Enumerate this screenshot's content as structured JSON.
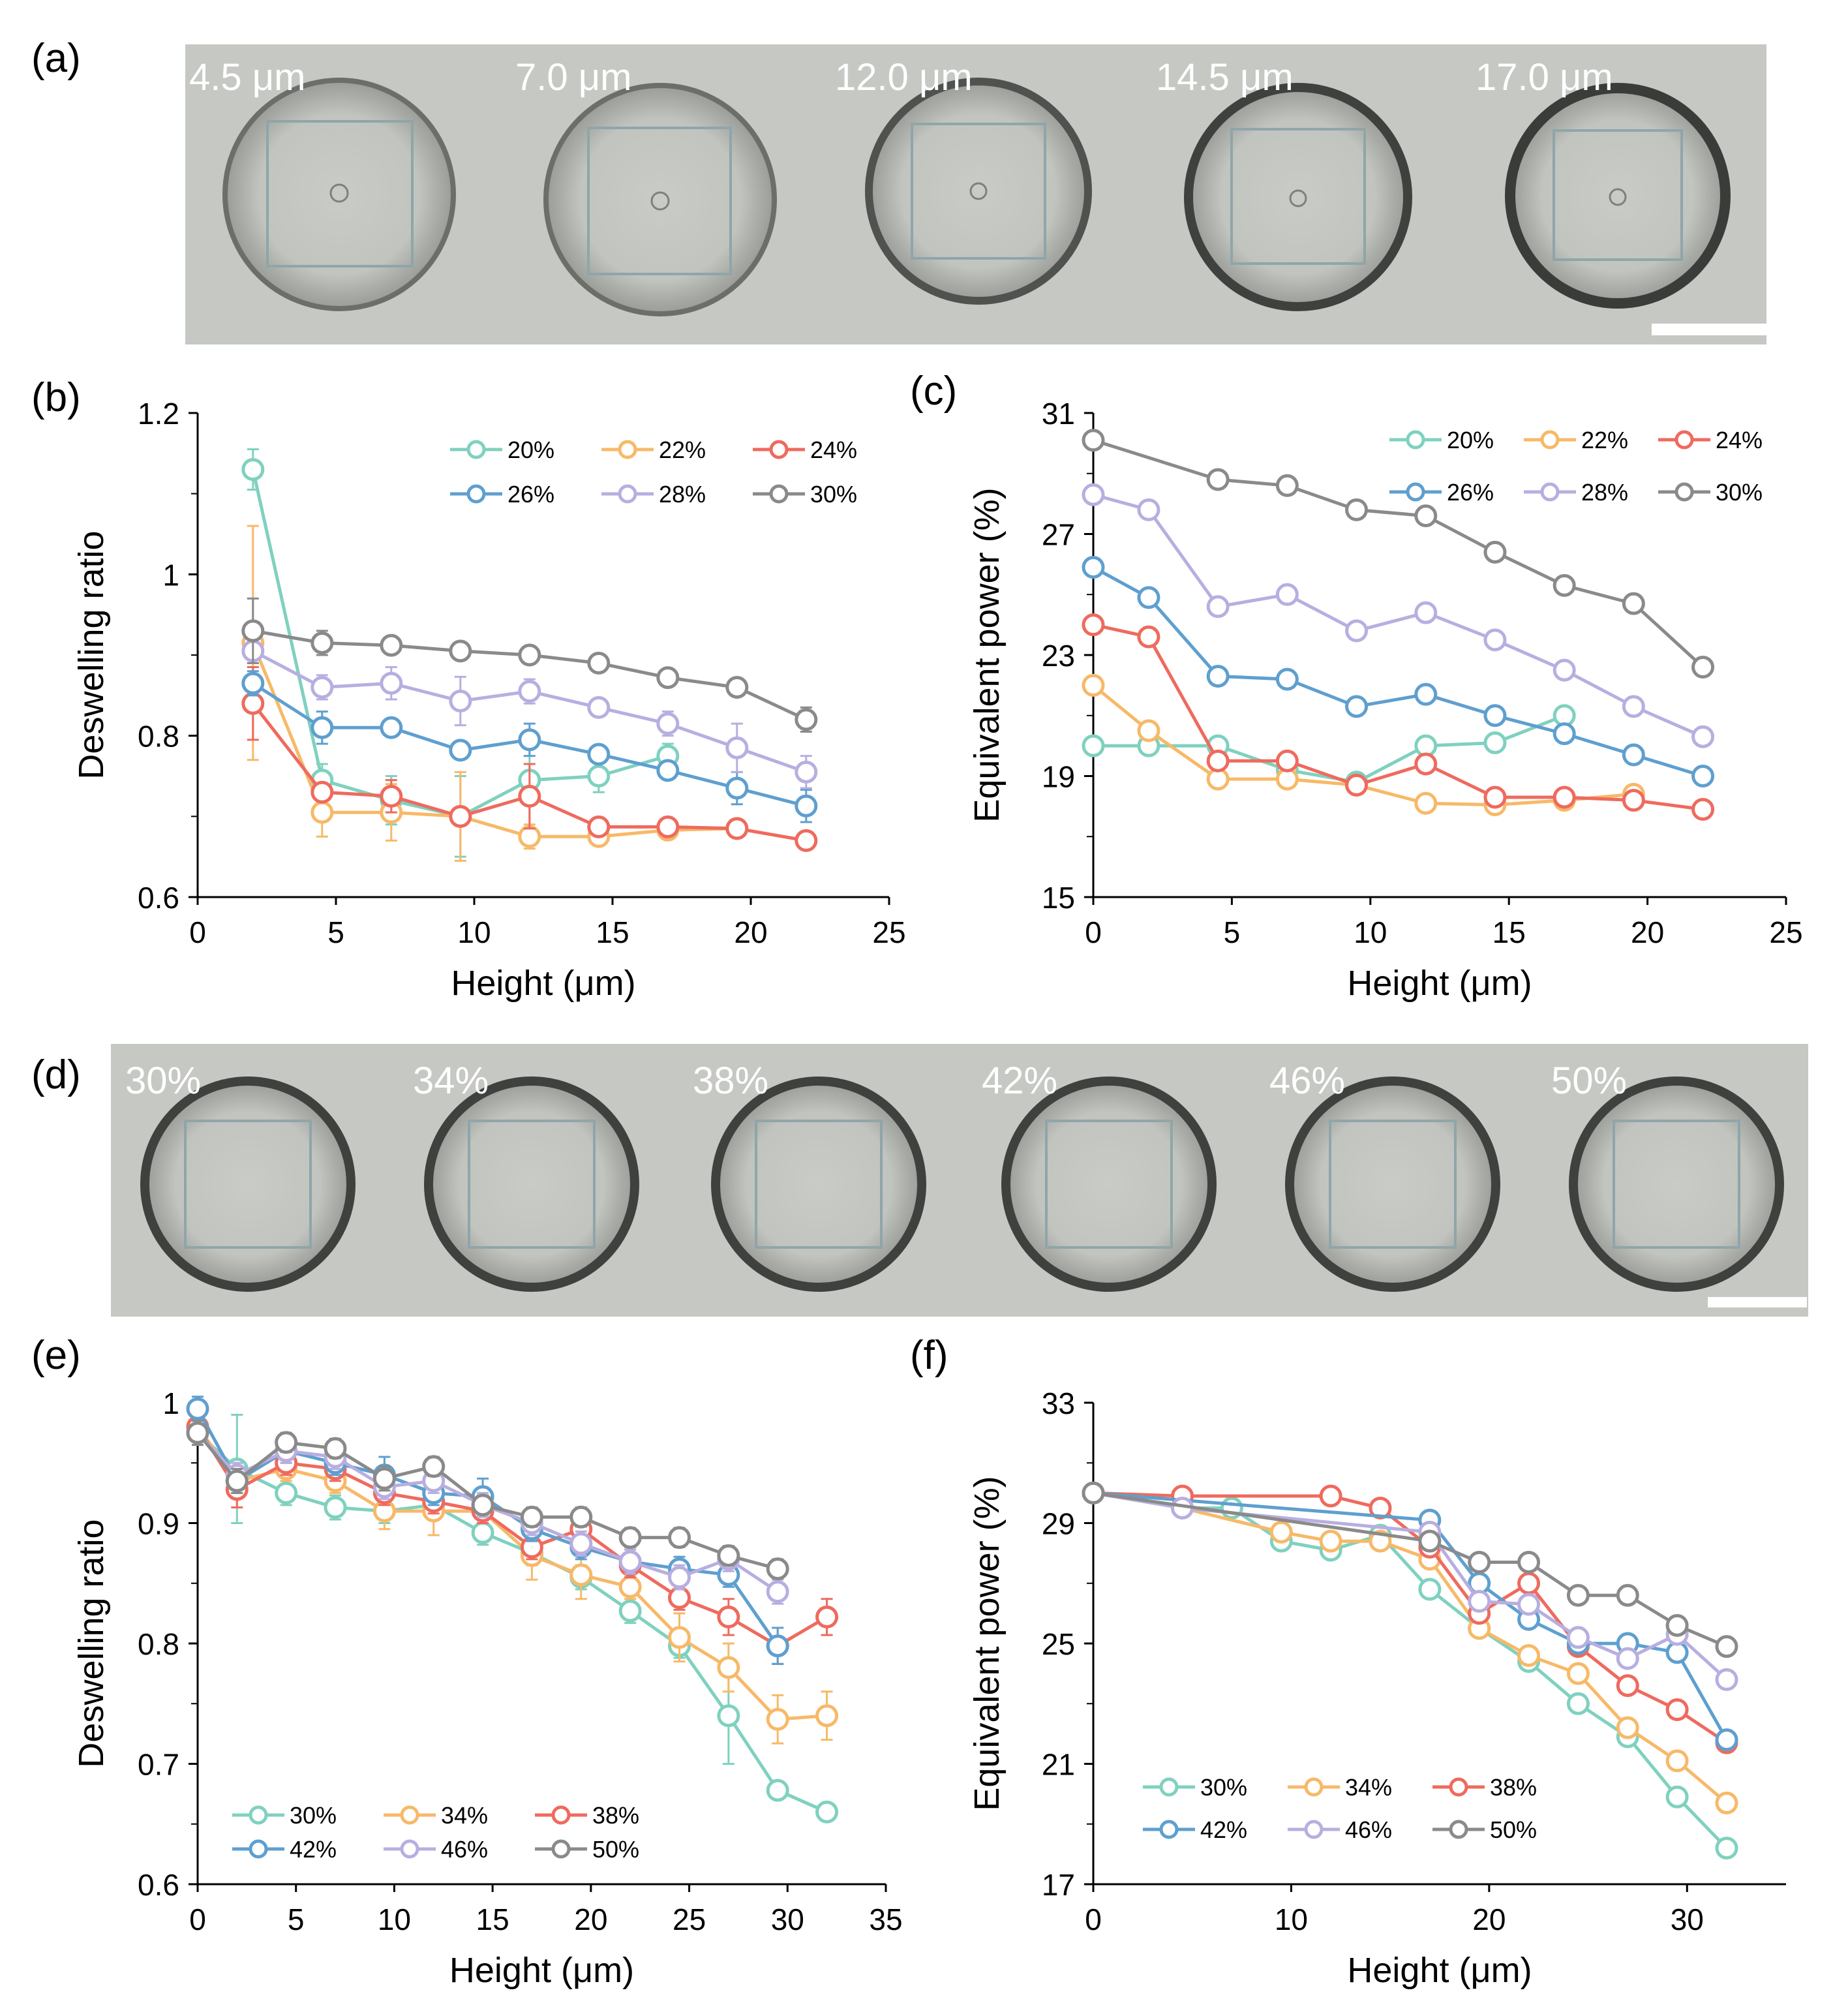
{
  "figure": {
    "panel_labels": [
      "(a)",
      "(b)",
      "(c)",
      "(d)",
      "(e)",
      "(f)"
    ],
    "strip_a_labels": [
      "4.5 μm",
      "7.0 μm",
      "12.0 μm",
      "14.5 μm",
      "17.0 μm"
    ],
    "strip_d_labels": [
      "30%",
      "34%",
      "38%",
      "42%",
      "46%",
      "50%"
    ]
  },
  "chart_data": [
    {
      "id": "b",
      "type": "line",
      "xlabel": "Height (μm)",
      "ylabel": "Deswelling ratio",
      "xlim": [
        0,
        25
      ],
      "ylim": [
        0.6,
        1.2
      ],
      "xticks": [
        0,
        5,
        10,
        15,
        20,
        25
      ],
      "yticks": [
        {
          "v": 0.6,
          "t": "0.6"
        },
        {
          "v": 0.8,
          "t": "0.8"
        },
        {
          "v": 1.0,
          "t": "1"
        },
        {
          "v": 1.2,
          "t": "1.2"
        }
      ],
      "legend_position": "top-right",
      "series": [
        {
          "name": "20%",
          "color": "#7fd1bf",
          "x": [
            2,
            4.5,
            7,
            9.5,
            12,
            14.5,
            17
          ],
          "y": [
            1.13,
            0.745,
            0.72,
            0.7,
            0.745,
            0.75,
            0.775
          ],
          "err": [
            0.025,
            0.02,
            0.03,
            0.05,
            0.06,
            0.02,
            0.015
          ]
        },
        {
          "name": "22%",
          "color": "#f7b968",
          "x": [
            2,
            4.5,
            7,
            9.5,
            12,
            14.5,
            17,
            19.5
          ],
          "y": [
            0.915,
            0.705,
            0.705,
            0.7,
            0.675,
            0.675,
            0.683,
            0.685
          ],
          "err": [
            0.145,
            0.03,
            0.035,
            0.055,
            0.015,
            0.01,
            0.01,
            0.01
          ]
        },
        {
          "name": "24%",
          "color": "#ef6a5e",
          "x": [
            2,
            4.5,
            7,
            9.5,
            12,
            14.5,
            17,
            19.5,
            22
          ],
          "y": [
            0.84,
            0.73,
            0.725,
            0.7,
            0.725,
            0.687,
            0.687,
            0.685,
            0.67
          ],
          "err": [
            0.045,
            0.01,
            0.02,
            0.005,
            0.04,
            0.01,
            0.01,
            0.01,
            0.01
          ]
        },
        {
          "name": "26%",
          "color": "#5e9fcf",
          "x": [
            2,
            4.5,
            7,
            9.5,
            12,
            14.5,
            17,
            19.5,
            22
          ],
          "y": [
            0.865,
            0.81,
            0.81,
            0.782,
            0.795,
            0.777,
            0.757,
            0.735,
            0.713
          ],
          "err": [
            0.015,
            0.02,
            0.01,
            0.01,
            0.02,
            0.01,
            0.01,
            0.02,
            0.02
          ]
        },
        {
          "name": "28%",
          "color": "#b8aee0",
          "x": [
            2,
            4.5,
            7,
            9.5,
            12,
            14.5,
            17,
            19.5,
            22
          ],
          "y": [
            0.905,
            0.86,
            0.865,
            0.843,
            0.855,
            0.835,
            0.815,
            0.785,
            0.755
          ],
          "err": [
            0.015,
            0.015,
            0.02,
            0.03,
            0.015,
            0.01,
            0.015,
            0.03,
            0.02
          ]
        },
        {
          "name": "30%",
          "color": "#8a8a8a",
          "x": [
            2,
            4.5,
            7,
            9.5,
            12,
            14.5,
            17,
            19.5,
            22
          ],
          "y": [
            0.93,
            0.915,
            0.912,
            0.905,
            0.9,
            0.89,
            0.872,
            0.86,
            0.82
          ],
          "err": [
            0.04,
            0.015,
            0.01,
            0.01,
            0.01,
            0.01,
            0.01,
            0.01,
            0.015
          ]
        }
      ]
    },
    {
      "id": "c",
      "type": "line",
      "xlabel": "Height (μm)",
      "ylabel": "Equivalent power (%)",
      "xlim": [
        0,
        25
      ],
      "ylim": [
        15,
        31
      ],
      "xticks": [
        0,
        5,
        10,
        15,
        20,
        25
      ],
      "yticks": [
        {
          "v": 15,
          "t": "15"
        },
        {
          "v": 19,
          "t": "19"
        },
        {
          "v": 23,
          "t": "23"
        },
        {
          "v": 27,
          "t": "27"
        },
        {
          "v": 31,
          "t": "31"
        }
      ],
      "legend_position": "top-right",
      "series": [
        {
          "name": "20%",
          "color": "#7fd1bf",
          "x": [
            0,
            2,
            4.5,
            7,
            9.5,
            12,
            14.5,
            17
          ],
          "y": [
            20,
            20,
            20,
            19.2,
            18.8,
            20,
            20.1,
            21
          ]
        },
        {
          "name": "22%",
          "color": "#f7b968",
          "x": [
            0,
            2,
            4.5,
            7,
            9.5,
            12,
            14.5,
            17,
            19.5
          ],
          "y": [
            22,
            20.5,
            18.9,
            18.9,
            18.7,
            18.1,
            18.05,
            18.2,
            18.4
          ]
        },
        {
          "name": "24%",
          "color": "#ef6a5e",
          "x": [
            0,
            2,
            4.5,
            7,
            9.5,
            12,
            14.5,
            17,
            19.5,
            22
          ],
          "y": [
            24,
            23.6,
            19.5,
            19.5,
            18.7,
            19.4,
            18.3,
            18.3,
            18.2,
            17.9
          ]
        },
        {
          "name": "26%",
          "color": "#5e9fcf",
          "x": [
            0,
            2,
            4.5,
            7,
            9.5,
            12,
            14.5,
            17,
            19.5,
            22
          ],
          "y": [
            25.9,
            24.9,
            22.3,
            22.2,
            21.3,
            21.7,
            21,
            20.4,
            19.7,
            19
          ]
        },
        {
          "name": "28%",
          "color": "#b8aee0",
          "x": [
            0,
            2,
            4.5,
            7,
            9.5,
            12,
            14.5,
            17,
            19.5,
            22
          ],
          "y": [
            28.3,
            27.8,
            24.6,
            25,
            23.8,
            24.4,
            23.5,
            22.5,
            21.3,
            20.3
          ]
        },
        {
          "name": "30%",
          "color": "#8a8a8a",
          "x": [
            0,
            4.5,
            7,
            9.5,
            12,
            14.5,
            17,
            19.5,
            22
          ],
          "y": [
            30.1,
            28.8,
            28.6,
            27.8,
            27.6,
            26.4,
            25.3,
            24.7,
            22.6
          ]
        }
      ]
    },
    {
      "id": "e",
      "type": "line",
      "xlabel": "Height (μm)",
      "ylabel": "Deswelling ratio",
      "xlim": [
        0,
        35
      ],
      "ylim": [
        0.6,
        1.0
      ],
      "xticks": [
        0,
        5,
        10,
        15,
        20,
        25,
        30,
        35
      ],
      "yticks": [
        {
          "v": 0.6,
          "t": "0.6"
        },
        {
          "v": 0.7,
          "t": "0.7"
        },
        {
          "v": 0.8,
          "t": "0.8"
        },
        {
          "v": 0.9,
          "t": "0.9"
        },
        {
          "v": 1.0,
          "t": "1"
        }
      ],
      "legend_position": "bottom-left",
      "series": [
        {
          "name": "30%",
          "color": "#7fd1bf",
          "x": [
            0,
            2,
            4.5,
            7,
            9.5,
            12,
            14.5,
            17,
            19.5,
            22,
            24.5,
            27,
            29.5,
            32
          ],
          "y": [
            0.975,
            0.945,
            0.925,
            0.913,
            0.91,
            0.915,
            0.892,
            0.875,
            0.855,
            0.827,
            0.798,
            0.74,
            0.678,
            0.66
          ],
          "err": [
            0.01,
            0.045,
            0.01,
            0.01,
            0.01,
            0.01,
            0.01,
            0.01,
            0.01,
            0.01,
            0.01,
            0.04,
            0.005,
            0.005
          ]
        },
        {
          "name": "34%",
          "color": "#f7b968",
          "x": [
            0,
            2,
            4.5,
            7,
            9.5,
            12,
            14.5,
            17,
            19.5,
            22,
            24.5,
            27,
            29.5,
            32
          ],
          "y": [
            0.98,
            0.935,
            0.945,
            0.935,
            0.91,
            0.91,
            0.91,
            0.873,
            0.857,
            0.847,
            0.805,
            0.78,
            0.737,
            0.74
          ],
          "err": [
            0.01,
            0.01,
            0.01,
            0.01,
            0.015,
            0.02,
            0.01,
            0.02,
            0.02,
            0.01,
            0.02,
            0.02,
            0.02,
            0.02
          ]
        },
        {
          "name": "38%",
          "color": "#ef6a5e",
          "x": [
            0,
            2,
            4.5,
            7,
            9.5,
            12,
            14.5,
            17,
            19.5,
            22,
            24.5,
            27,
            29.5,
            32
          ],
          "y": [
            0.98,
            0.928,
            0.95,
            0.945,
            0.925,
            0.918,
            0.91,
            0.88,
            0.895,
            0.865,
            0.838,
            0.822,
            0.798,
            0.822
          ],
          "err": [
            0.01,
            0.015,
            0.01,
            0.01,
            0.01,
            0.01,
            0.01,
            0.01,
            0.01,
            0.01,
            0.01,
            0.015,
            0.015,
            0.015
          ]
        },
        {
          "name": "42%",
          "color": "#5e9fcf",
          "x": [
            0,
            2,
            4.5,
            7,
            9.5,
            12,
            14.5,
            17,
            19.5,
            22,
            24.5,
            27,
            29.5
          ],
          "y": [
            0.995,
            0.935,
            0.96,
            0.95,
            0.94,
            0.925,
            0.922,
            0.895,
            0.88,
            0.868,
            0.862,
            0.857,
            0.798
          ],
          "err": [
            0.01,
            0.01,
            0.01,
            0.01,
            0.015,
            0.01,
            0.015,
            0.01,
            0.01,
            0.01,
            0.01,
            0.01,
            0.015
          ]
        },
        {
          "name": "46%",
          "color": "#b8aee0",
          "x": [
            0,
            2,
            4.5,
            7,
            9.5,
            12,
            14.5,
            17,
            19.5,
            22,
            24.5,
            27,
            29.5
          ],
          "y": [
            0.975,
            0.94,
            0.96,
            0.955,
            0.93,
            0.935,
            0.915,
            0.9,
            0.883,
            0.868,
            0.855,
            0.87,
            0.843
          ],
          "err": [
            0.01,
            0.01,
            0.01,
            0.01,
            0.01,
            0.01,
            0.01,
            0.01,
            0.01,
            0.01,
            0.01,
            0.01,
            0.01
          ]
        },
        {
          "name": "50%",
          "color": "#8a8a8a",
          "x": [
            0,
            2,
            4.5,
            7,
            9.5,
            12,
            14.5,
            17,
            19.5,
            22,
            24.5,
            27,
            29.5
          ],
          "y": [
            0.975,
            0.935,
            0.967,
            0.962,
            0.937,
            0.947,
            0.915,
            0.905,
            0.905,
            0.888,
            0.888,
            0.873,
            0.862
          ],
          "err": [
            0.01,
            0.01,
            0.008,
            0.008,
            0.01,
            0.008,
            0.008,
            0.008,
            0.008,
            0.008,
            0.008,
            0.008,
            0.008
          ]
        }
      ]
    },
    {
      "id": "f",
      "type": "line",
      "xlabel": "Height (μm)",
      "ylabel": "Equivalent power (%)",
      "xlim": [
        0,
        35
      ],
      "ylim": [
        17,
        33
      ],
      "xticks": [
        {
          "v": 0,
          "t": "0"
        },
        {
          "v": 10,
          "t": "10"
        },
        {
          "v": 20,
          "t": "20"
        },
        {
          "v": 30,
          "t": "30"
        }
      ],
      "yticks": [
        {
          "v": 17,
          "t": "17"
        },
        {
          "v": 21,
          "t": "21"
        },
        {
          "v": 25,
          "t": "25"
        },
        {
          "v": 29,
          "t": "29"
        },
        {
          "v": 33,
          "t": "33"
        }
      ],
      "legend_position": "bottom-left",
      "series": [
        {
          "name": "30%",
          "color": "#7fd1bf",
          "x": [
            0,
            4.5,
            7,
            9.5,
            12,
            14.5,
            17,
            19.5,
            22,
            24.5,
            27,
            29.5,
            32
          ],
          "y": [
            30,
            29.5,
            29.5,
            28.4,
            28.1,
            28.6,
            26.8,
            25.5,
            24.4,
            23,
            21.9,
            19.9,
            18.2
          ]
        },
        {
          "name": "34%",
          "color": "#f7b968",
          "x": [
            0,
            4.5,
            9.5,
            12,
            14.5,
            17,
            19.5,
            22,
            24.5,
            27,
            29.5,
            32
          ],
          "y": [
            30,
            29.5,
            28.7,
            28.4,
            28.4,
            27.8,
            25.5,
            24.6,
            24,
            22.2,
            21.1,
            19.7
          ]
        },
        {
          "name": "38%",
          "color": "#ef6a5e",
          "x": [
            0,
            4.5,
            12,
            14.5,
            17,
            19.5,
            22,
            24.5,
            27,
            29.5,
            32
          ],
          "y": [
            30,
            29.9,
            29.9,
            29.5,
            28.2,
            26,
            27,
            24.9,
            23.6,
            22.8,
            21.7
          ]
        },
        {
          "name": "42%",
          "color": "#5e9fcf",
          "x": [
            0,
            17,
            19.5,
            22,
            24.5,
            27,
            29.5,
            32
          ],
          "y": [
            30,
            29.1,
            27,
            25.8,
            25,
            25,
            24.7,
            21.8
          ]
        },
        {
          "name": "46%",
          "color": "#b8aee0",
          "x": [
            0,
            4.5,
            17,
            19.5,
            22,
            24.5,
            27,
            29.5,
            32
          ],
          "y": [
            30,
            29.5,
            28.7,
            26.4,
            26.3,
            25.2,
            24.5,
            25.3,
            23.8
          ]
        },
        {
          "name": "50%",
          "color": "#8a8a8a",
          "x": [
            0,
            17,
            19.5,
            22,
            24.5,
            27,
            29.5,
            32
          ],
          "y": [
            30,
            28.4,
            27.7,
            27.7,
            26.6,
            26.6,
            25.6,
            24.9
          ]
        }
      ]
    }
  ]
}
